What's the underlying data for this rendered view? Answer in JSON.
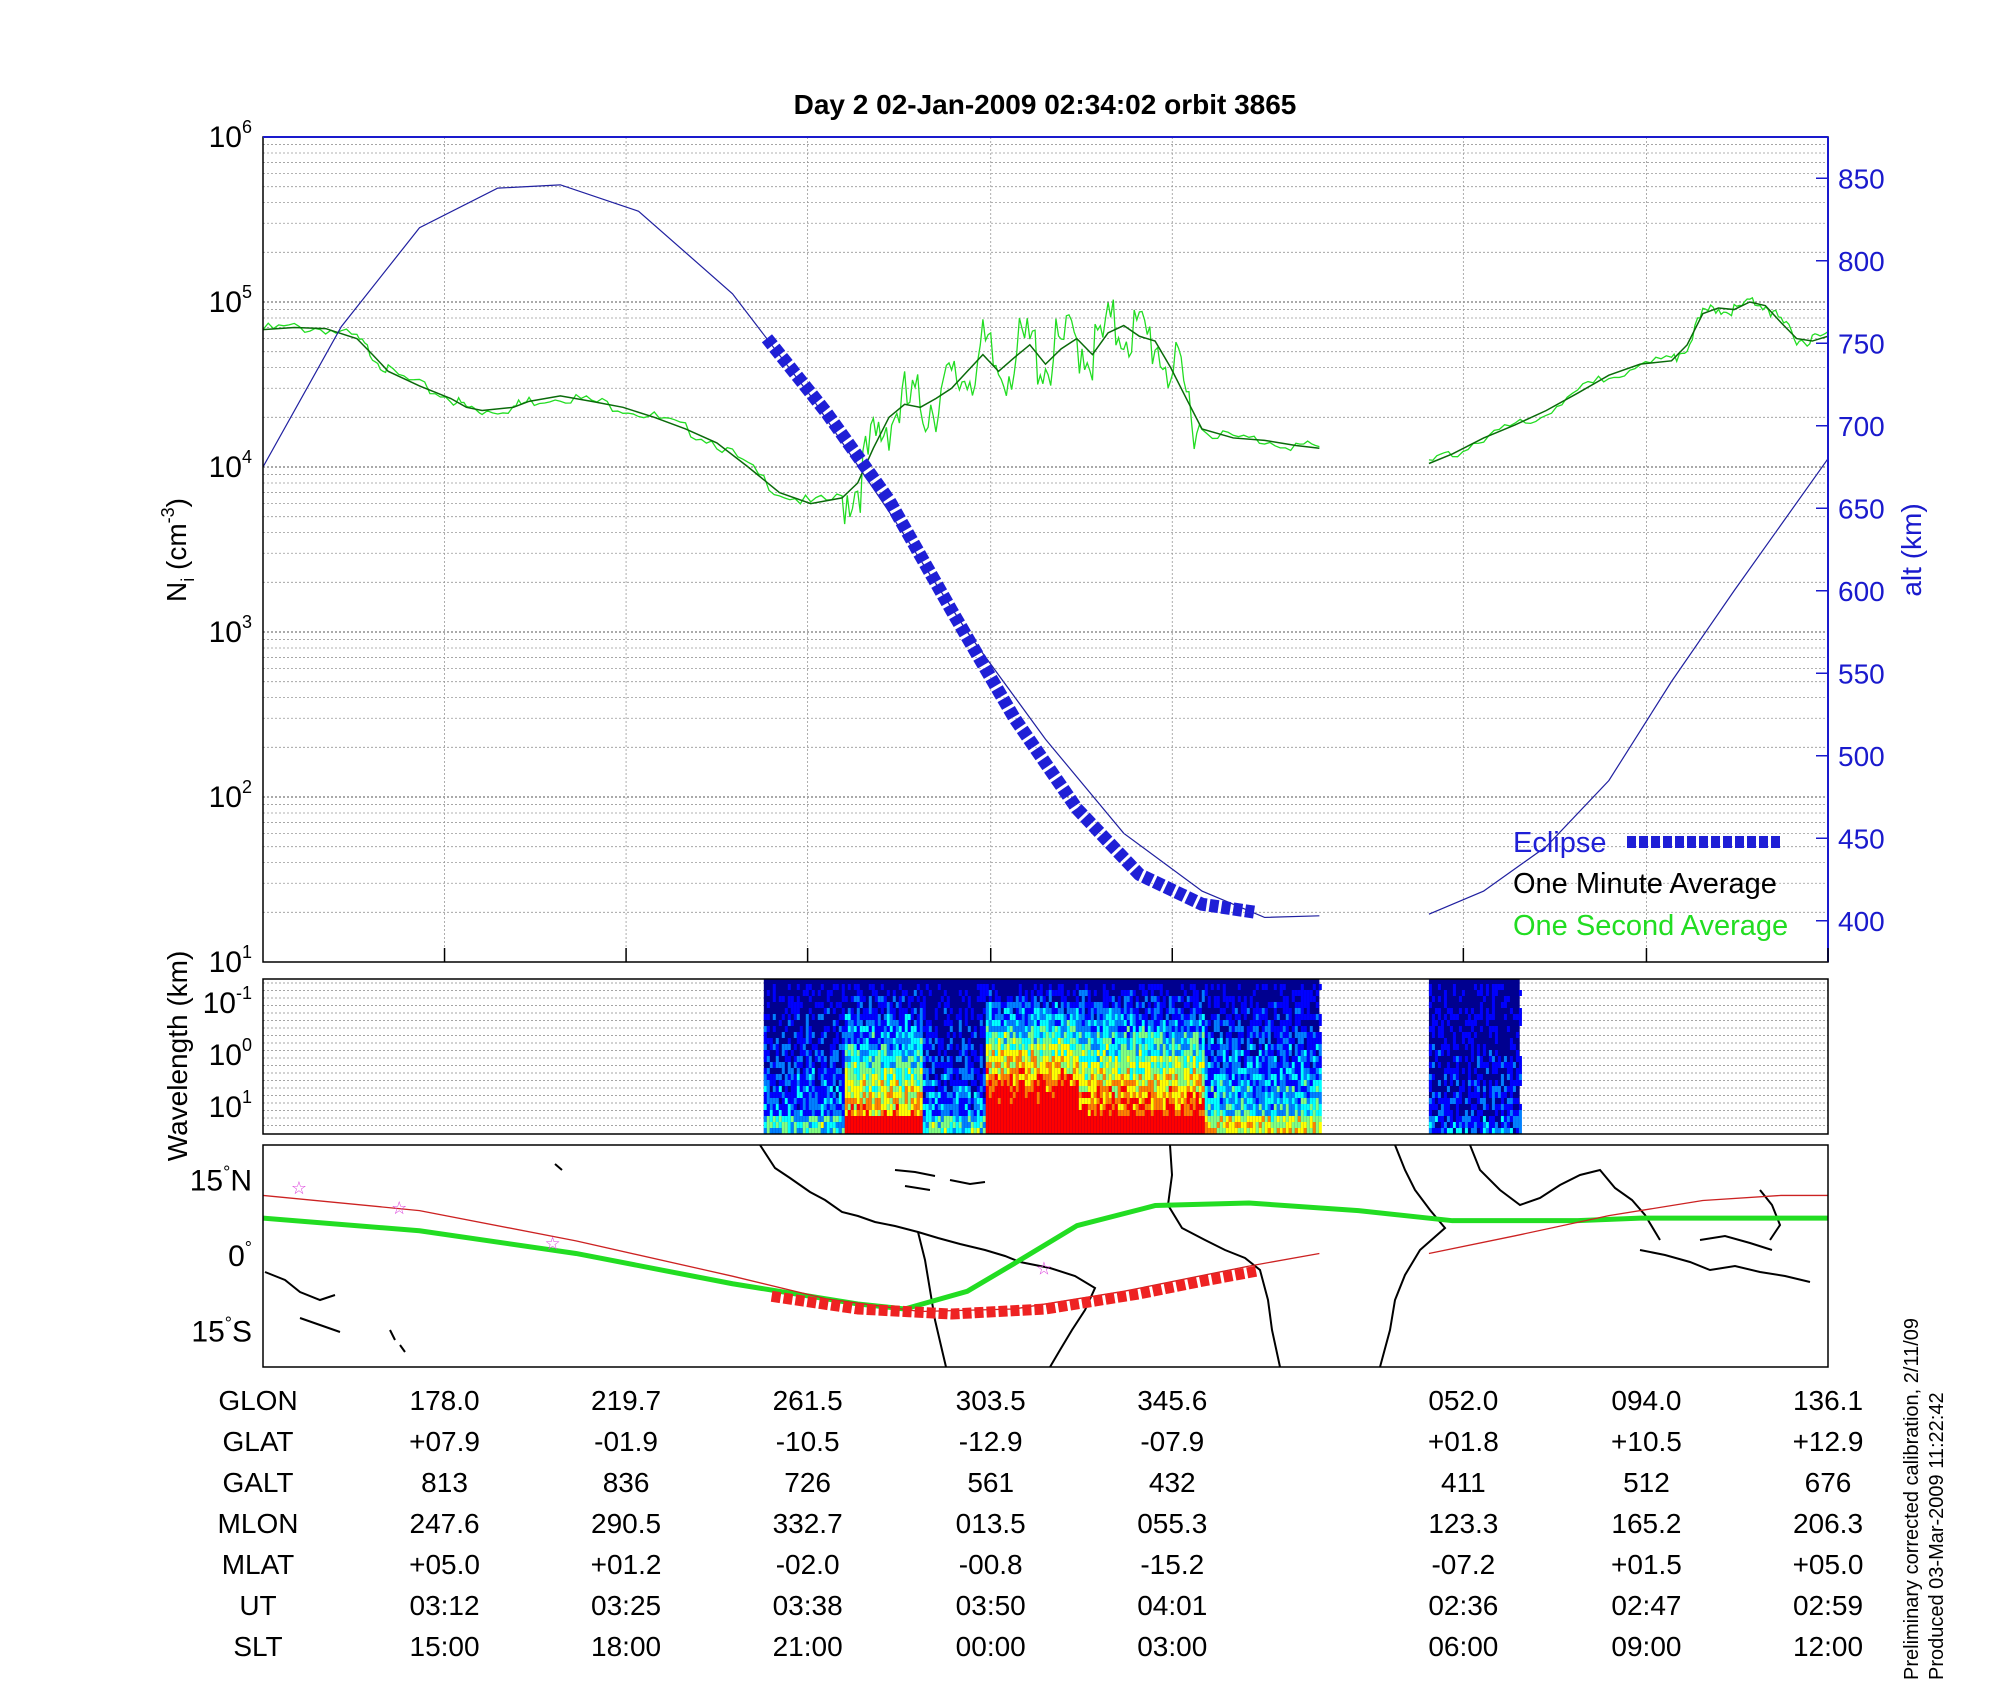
{
  "chart_data": [
    {
      "type": "line",
      "title": "Day 2  02-Jan-2009 02:34:02   orbit 3865",
      "ylabel": "N_i (cm^-3)",
      "ylabel_parts": {
        "base": "N",
        "sub": "i",
        "open": " (cm",
        "sup": "-3",
        "close": ")"
      },
      "y_scale": "log",
      "ylim": [
        10,
        1000000
      ],
      "y_ticks": [
        {
          "base": "10",
          "exp": "1"
        },
        {
          "base": "10",
          "exp": "2"
        },
        {
          "base": "10",
          "exp": "3"
        },
        {
          "base": "10",
          "exp": "4"
        },
        {
          "base": "10",
          "exp": "5"
        },
        {
          "base": "10",
          "exp": "6"
        }
      ],
      "y2label": "alt (km)",
      "y2lim": [
        375,
        875
      ],
      "y2_ticks": [
        "400",
        "450",
        "500",
        "550",
        "600",
        "650",
        "700",
        "750",
        "800",
        "850"
      ],
      "x_relative_range": [
        0,
        1
      ],
      "x_tick_positions": [
        0.116,
        0.232,
        0.348,
        0.465,
        0.581,
        0.767,
        0.884,
        1.0
      ],
      "gap": [
        0.675,
        0.745
      ],
      "grid": true,
      "legend_position": "bottom-right",
      "legend": [
        {
          "label": "Eclipse",
          "color": "#1f1fd6"
        },
        {
          "label": "One Minute Average",
          "color": "#000000"
        },
        {
          "label": "One Second Average",
          "color": "#22dd22"
        }
      ],
      "series": [
        {
          "name": "One Minute Average",
          "color": "#0a6a0a",
          "x": [
            0,
            0.02,
            0.04,
            0.06,
            0.07,
            0.08,
            0.1,
            0.12,
            0.13,
            0.14,
            0.16,
            0.17,
            0.19,
            0.21,
            0.23,
            0.25,
            0.27,
            0.29,
            0.31,
            0.33,
            0.35,
            0.37,
            0.38,
            0.39,
            0.4,
            0.41,
            0.42,
            0.43,
            0.44,
            0.45,
            0.46,
            0.47,
            0.48,
            0.49,
            0.5,
            0.51,
            0.52,
            0.53,
            0.54,
            0.55,
            0.56,
            0.57,
            0.58,
            0.59,
            0.6,
            0.62,
            0.64,
            0.66,
            0.675
          ],
          "y": [
            68000,
            70000,
            69000,
            60000,
            48000,
            38000,
            31000,
            26000,
            23000,
            22000,
            23000,
            25000,
            27000,
            25000,
            23000,
            20000,
            17000,
            14000,
            10000,
            7000,
            6000,
            6500,
            8000,
            13000,
            20000,
            24000,
            23000,
            26000,
            30000,
            38000,
            48000,
            38000,
            46000,
            55000,
            42000,
            52000,
            60000,
            48000,
            65000,
            72000,
            62000,
            58000,
            40000,
            26000,
            17000,
            15000,
            14500,
            13500,
            13000
          ]
        },
        {
          "name": "One Minute Average (segment 2)",
          "color": "#0a6a0a",
          "x": [
            0.745,
            0.76,
            0.78,
            0.8,
            0.82,
            0.84,
            0.86,
            0.88,
            0.9,
            0.91,
            0.92,
            0.93,
            0.94,
            0.95,
            0.96,
            0.97,
            0.98,
            0.99,
            1.0
          ],
          "y": [
            10500,
            12000,
            15000,
            18000,
            22000,
            28000,
            36000,
            42000,
            44000,
            55000,
            85000,
            92000,
            90000,
            100000,
            95000,
            75000,
            60000,
            58000,
            62000
          ]
        },
        {
          "name": "altitude",
          "axis": "y2",
          "color": "#2020a0",
          "x": [
            0,
            0.05,
            0.1,
            0.15,
            0.19,
            0.24,
            0.3,
            0.35,
            0.4,
            0.45,
            0.5,
            0.55,
            0.6,
            0.64,
            0.675
          ],
          "y": [
            675,
            760,
            820,
            844,
            846,
            830,
            780,
            718,
            648,
            575,
            510,
            453,
            418,
            402,
            403
          ]
        },
        {
          "name": "altitude (segment 2)",
          "axis": "y2",
          "color": "#2020a0",
          "x": [
            0.745,
            0.78,
            0.82,
            0.86,
            0.9,
            0.94,
            0.97,
            1.0
          ],
          "y": [
            404,
            418,
            445,
            485,
            545,
            600,
            640,
            680
          ]
        },
        {
          "name": "Eclipse",
          "axis": "y2",
          "color": "#1f1fd6",
          "x": [
            0.322,
            0.36,
            0.4,
            0.44,
            0.48,
            0.52,
            0.56,
            0.6,
            0.635
          ],
          "y": [
            753,
            708,
            655,
            588,
            523,
            468,
            428,
            410,
            405
          ]
        }
      ]
    },
    {
      "type": "heatmap",
      "ylabel": "Wavelength (km)",
      "y_scale": "log",
      "y_ticks": [
        {
          "base": "10",
          "exp": "-1"
        },
        {
          "base": "10",
          "exp": "0"
        },
        {
          "base": "10",
          "exp": "1"
        }
      ],
      "data_ranges": [
        [
          0.32,
          0.675
        ],
        [
          0.745,
          0.803
        ]
      ],
      "colormap": [
        "#00008f",
        "#0000ff",
        "#0080ff",
        "#00ffff",
        "#80ff80",
        "#ffff00",
        "#ff8000",
        "#ff0000"
      ]
    },
    {
      "type": "map",
      "ytick_labels": [
        {
          "num": "15",
          "dir": "N"
        },
        {
          "num": "0",
          "dir": ""
        },
        {
          "num": "15",
          "dir": "S"
        }
      ],
      "ylim": [
        -22,
        22
      ],
      "series": [
        {
          "name": "magnetic equator",
          "color": "#22dd22",
          "x": [
            0,
            0.1,
            0.2,
            0.3,
            0.38,
            0.41,
            0.45,
            0.48,
            0.52,
            0.57,
            0.63,
            0.7,
            0.76,
            0.84,
            0.88,
            0.94,
            1.0
          ],
          "y": [
            7.5,
            5,
            0.5,
            -5.5,
            -9.5,
            -10.5,
            -7,
            -1.5,
            6,
            10,
            10.5,
            9,
            7,
            7,
            7.5,
            7.5,
            7.5
          ]
        },
        {
          "name": "orbit track",
          "color": "#cc2222",
          "x": [
            0,
            0.1,
            0.2,
            0.3,
            0.36,
            0.42,
            0.48,
            0.55,
            0.63,
            0.675
          ],
          "y": [
            12,
            9,
            3,
            -4,
            -8.5,
            -11,
            -10.5,
            -7,
            -2,
            0.5
          ]
        },
        {
          "name": "orbit track (segment 2)",
          "color": "#cc2222",
          "x": [
            0.745,
            0.8,
            0.86,
            0.92,
            0.97,
            1.0
          ],
          "y": [
            0.5,
            4,
            8,
            11,
            12,
            12
          ]
        },
        {
          "name": "eclipse track",
          "color": "#ee2222",
          "x": [
            0.325,
            0.38,
            0.44,
            0.5,
            0.56,
            0.6,
            0.635
          ],
          "y": [
            -8,
            -10.5,
            -11.5,
            -10.5,
            -7.5,
            -5,
            -3
          ]
        },
        {
          "name": "markers",
          "color": "#dd44dd",
          "x": [
            0.023,
            0.087,
            0.185,
            0.499
          ],
          "y": [
            13.5,
            9.5,
            2.5,
            -2.5
          ]
        }
      ]
    }
  ],
  "table": {
    "row_labels": [
      "GLON",
      "GLAT",
      "GALT",
      "MLON",
      "MLAT",
      "UT",
      "SLT"
    ],
    "columns": [
      [
        "178.0",
        "+07.9",
        "813",
        "247.6",
        "+05.0",
        "03:12",
        "15:00"
      ],
      [
        "219.7",
        "-01.9",
        "836",
        "290.5",
        "+01.2",
        "03:25",
        "18:00"
      ],
      [
        "261.5",
        "-10.5",
        "726",
        "332.7",
        "-02.0",
        "03:38",
        "21:00"
      ],
      [
        "303.5",
        "-12.9",
        "561",
        "013.5",
        "-00.8",
        "03:50",
        "00:00"
      ],
      [
        "345.6",
        "-07.9",
        "432",
        "055.3",
        "-15.2",
        "04:01",
        "03:00"
      ],
      [
        "052.0",
        "+01.8",
        "411",
        "123.3",
        "-07.2",
        "02:36",
        "06:00"
      ],
      [
        "094.0",
        "+10.5",
        "512",
        "165.2",
        "+01.5",
        "02:47",
        "09:00"
      ],
      [
        "136.1",
        "+12.9",
        "676",
        "206.3",
        "+05.0",
        "02:59",
        "12:00"
      ]
    ]
  },
  "side_notes": [
    "Preliminary corrected calibration, 2/11/09",
    "Produced 03-Mar-2009 11:22:42"
  ]
}
